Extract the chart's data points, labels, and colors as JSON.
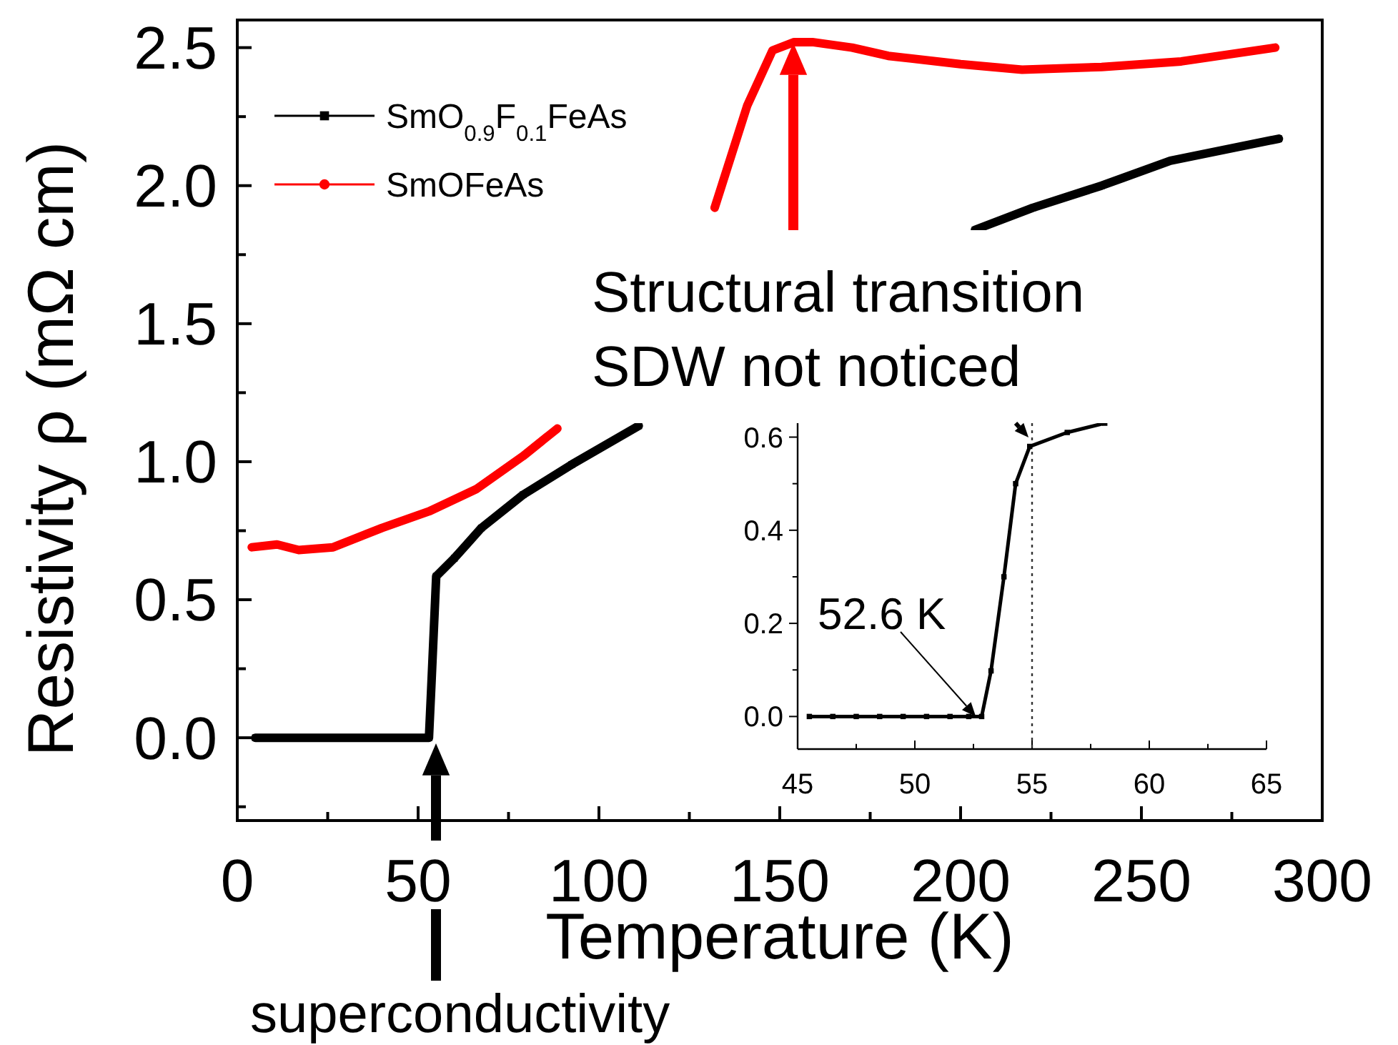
{
  "chart_data": [
    {
      "type": "line",
      "xlabel": "Temperature (K)",
      "ylabel": "Resistivity ρ (mΩ cm)",
      "xlim": [
        0,
        300
      ],
      "xticks": [
        0,
        {
          "value": 25,
          "label": null
        },
        50,
        {
          "value": 75,
          "label": null
        },
        100,
        {
          "value": 125,
          "label": null
        },
        150,
        {
          "value": 175,
          "label": null
        },
        200,
        {
          "value": 225,
          "label": null
        },
        250,
        {
          "value": 275,
          "label": null
        },
        300
      ],
      "ylim": [
        -0.3,
        2.6
      ],
      "yticks": [
        {
          "value": -0.25,
          "label": null
        },
        {
          "value": 0,
          "label": "0.0"
        },
        {
          "value": 0.25,
          "label": null
        },
        0.5,
        {
          "value": 0.75,
          "label": null
        },
        {
          "value": 1,
          "label": "1.0"
        },
        {
          "value": 1.25,
          "label": null
        },
        1.5,
        {
          "value": 1.75,
          "label": null
        },
        {
          "value": 2,
          "label": "2.0"
        },
        {
          "value": 2.25,
          "label": null
        },
        2.5
      ],
      "legend": "top left",
      "line_style": "solid",
      "series": [
        {
          "name": "SmO$_{0.9}$F$_{0.1}$FeAs",
          "color": "#000000",
          "marker": "square",
          "x": [
            5,
            20,
            35,
            50,
            53,
            53.7,
            55,
            60,
            67.5,
            79,
            92.5,
            111,
            150,
            204,
            220,
            239,
            258,
            288
          ],
          "values": [
            0,
            0,
            0,
            0,
            0,
            0.2,
            0.585,
            0.65,
            0.76,
            0.88,
            0.99,
            1.13,
            null,
            1.84,
            1.92,
            2.0,
            2.09,
            2.17
          ]
        },
        {
          "name": "SmOFeAs",
          "color": "#ff0000",
          "marker": "circle",
          "x": [
            4,
            11,
            17,
            26.5,
            40,
            53,
            66,
            79,
            88.5,
            110,
            132,
            141,
            148,
            154,
            159,
            170,
            180,
            200,
            217,
            239,
            261,
            287
          ],
          "values": [
            0.69,
            0.7,
            0.68,
            0.69,
            0.76,
            0.82,
            0.9,
            1.02,
            1.12,
            null,
            1.92,
            2.29,
            2.49,
            2.52,
            2.52,
            2.5,
            2.47,
            2.44,
            2.42,
            2.43,
            2.45,
            2.5
          ]
        }
      ],
      "annotations": [
        "Structural transition\nSDW not noticed",
        "superconductivity"
      ]
    },
    {
      "type": "line",
      "xlim": [
        45,
        65
      ],
      "xticks": [
        45,
        {
          "value": 47.5,
          "label": null
        },
        50,
        {
          "value": 52.5,
          "label": null
        },
        55,
        {
          "value": 57.5,
          "label": null
        },
        60,
        {
          "value": 62.5,
          "label": null
        },
        65
      ],
      "ylim": [
        -0.07,
        0.63
      ],
      "yticks": [
        {
          "value": 0,
          "label": "0.0"
        },
        {
          "value": 0.1,
          "label": null
        },
        0.2,
        {
          "value": 0.3,
          "label": null
        },
        0.4,
        {
          "value": 0.5,
          "label": null
        },
        0.6
      ],
      "marker": "square",
      "line_style": "solid",
      "series": [
        {
          "color": "#000000",
          "x": [
            45.5,
            46.5,
            47.5,
            48.5,
            49.5,
            50.5,
            51.5,
            52.3,
            52.85,
            53.25,
            53.8,
            54.3,
            54.9,
            56.5,
            58.1
          ],
          "values": [
            0,
            0,
            0,
            0,
            0,
            0,
            0,
            0,
            0,
            0.098,
            0.3,
            0.5,
            0.58,
            0.61,
            0.63
          ]
        }
      ],
      "ref_lines": [
        {
          "axis": "x",
          "value": 55,
          "line_style": "dotted"
        }
      ],
      "annotations": [
        {
          "text": "52.6 K",
          "x": 52.6,
          "y": 0
        }
      ]
    }
  ]
}
